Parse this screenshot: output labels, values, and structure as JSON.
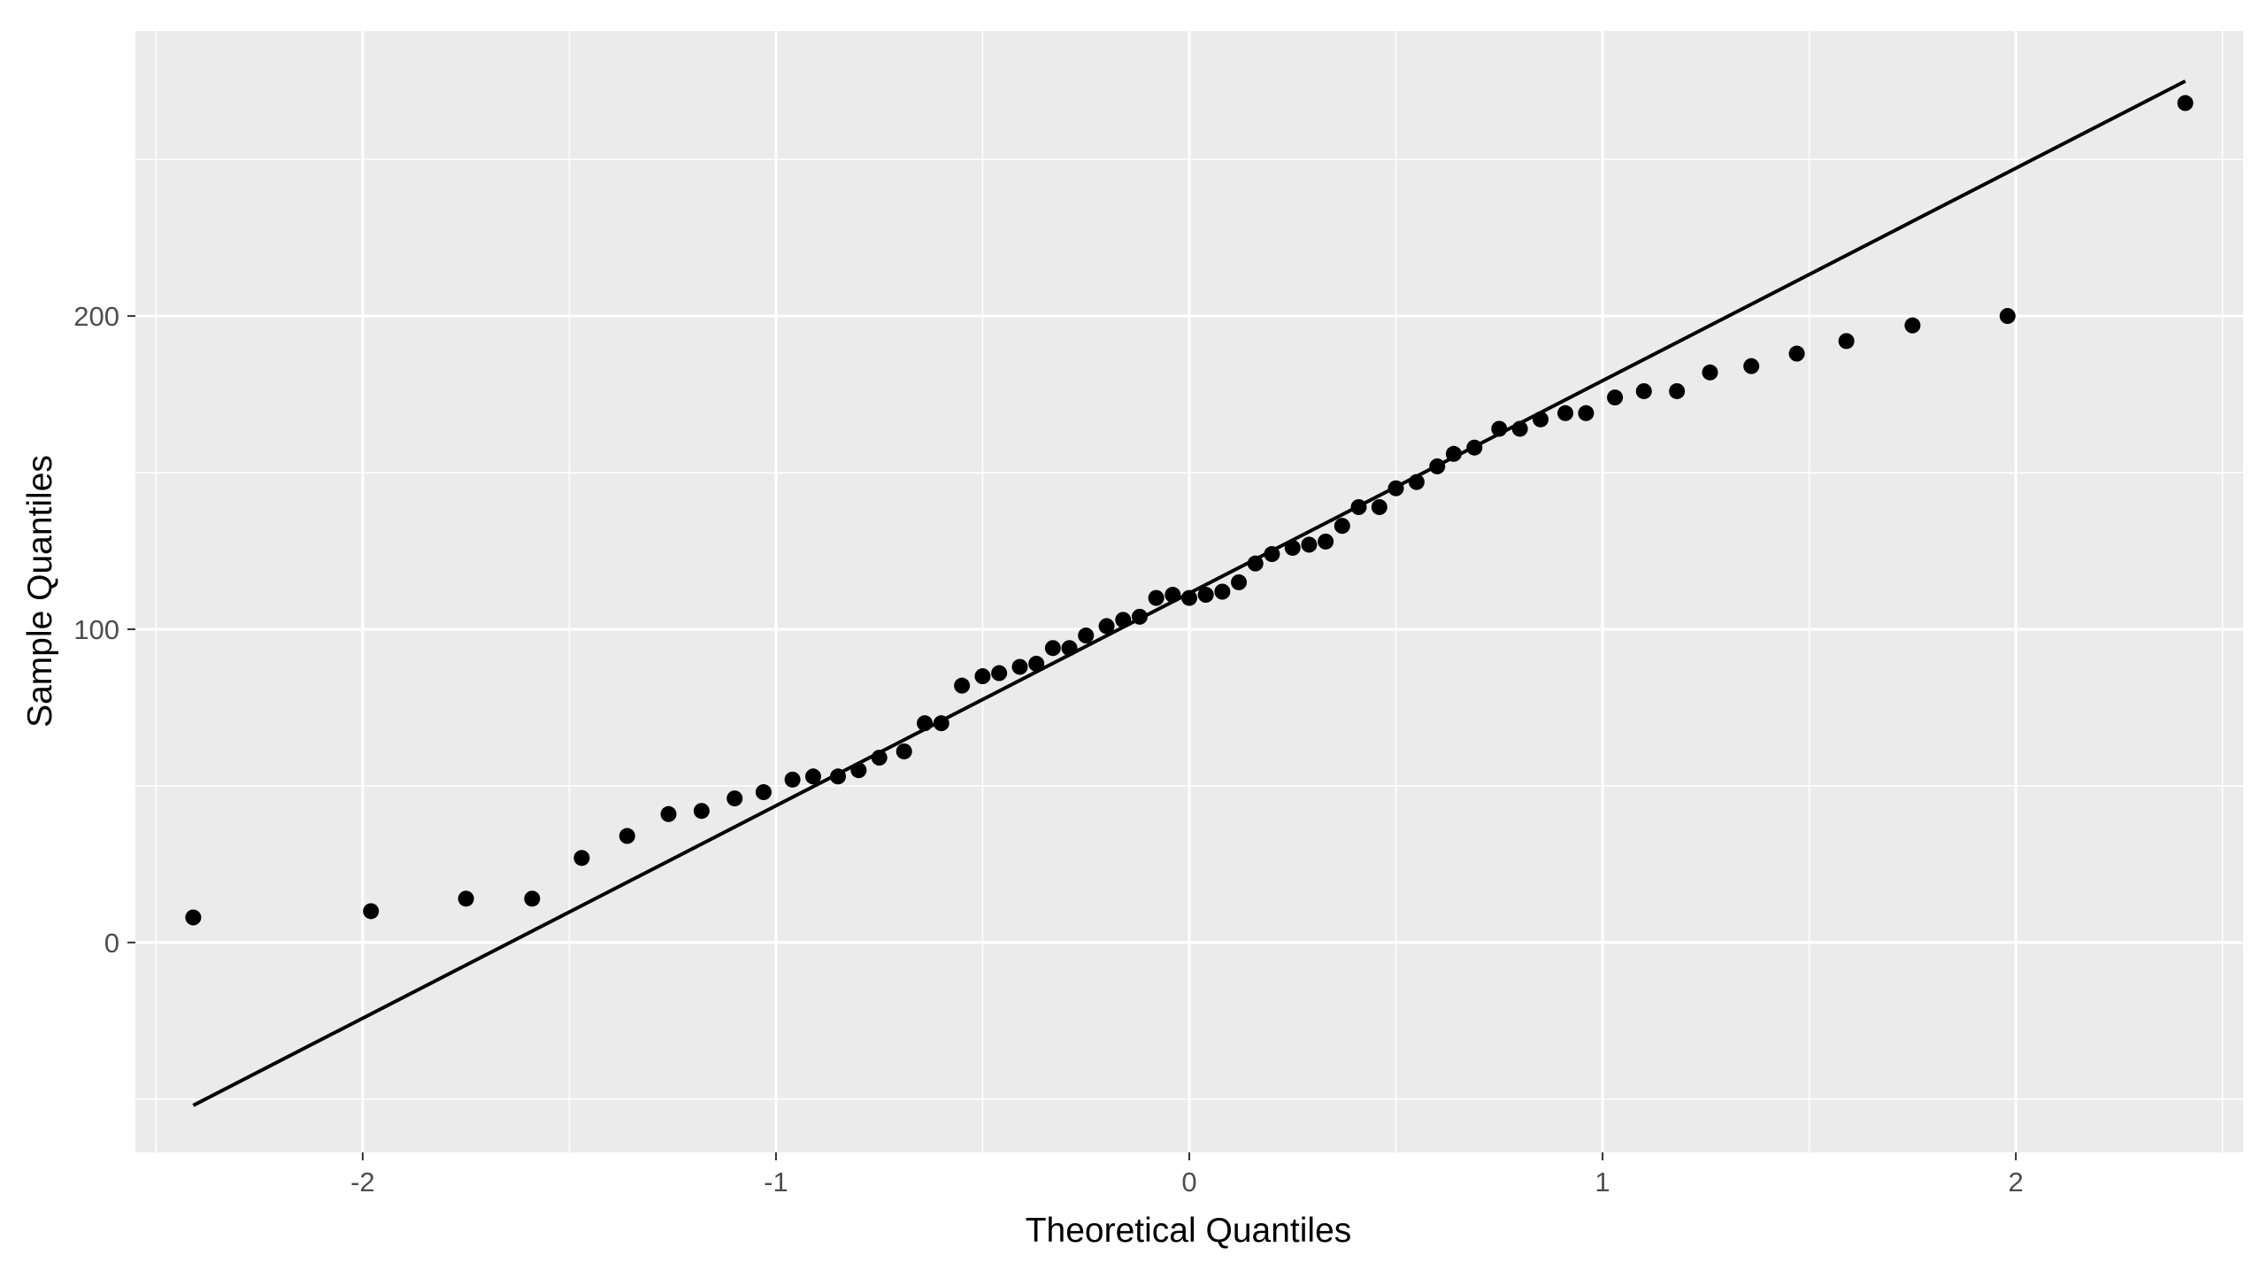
{
  "chart_data": {
    "type": "scatter",
    "title": "",
    "xlabel": "Theoretical Quantiles",
    "ylabel": "Sample Quantiles",
    "xlim": [
      -2.55,
      2.55
    ],
    "ylim": [
      -67,
      291
    ],
    "x_ticks": [
      -2,
      -1,
      0,
      1,
      2
    ],
    "x_tick_labels": [
      "-2",
      "-1",
      "0",
      "1",
      "2"
    ],
    "y_ticks": [
      0,
      100,
      200
    ],
    "y_tick_labels": [
      "0",
      "100",
      "200"
    ],
    "grid": true,
    "legend": "none",
    "colors": {
      "panel_background": "#ebebeb",
      "grid_line": "#ffffff",
      "point": "#000000",
      "reference_line": "#000000"
    },
    "series": [
      {
        "x": [
          -2.41,
          -1.98,
          -1.75,
          -1.59,
          -1.47,
          -1.36,
          -1.26,
          -1.18,
          -1.1,
          -1.03,
          -0.96,
          -0.91,
          -0.85,
          -0.8,
          -0.75,
          -0.69,
          -0.64,
          -0.6,
          -0.55,
          -0.5,
          -0.46,
          -0.41,
          -0.37,
          -0.33,
          -0.29,
          -0.25,
          -0.2,
          -0.16,
          -0.12,
          -0.08,
          -0.04,
          0.0,
          0.04,
          0.08,
          0.12,
          0.16,
          0.2,
          0.25,
          0.29,
          0.33,
          0.37,
          0.41,
          0.46,
          0.5,
          0.55,
          0.6,
          0.64,
          0.69,
          0.75,
          0.8,
          0.85,
          0.91,
          0.96,
          1.03,
          1.1,
          1.18,
          1.26,
          1.36,
          1.47,
          1.59,
          1.75,
          1.98,
          2.41
        ],
        "y": [
          8,
          10,
          14,
          14,
          27,
          34,
          41,
          42,
          46,
          48,
          52,
          53,
          53,
          55,
          59,
          61,
          70,
          70,
          82,
          85,
          86,
          88,
          89,
          94,
          94,
          98,
          101,
          103,
          104,
          110,
          111,
          110,
          111,
          112,
          115,
          121,
          124,
          126,
          127,
          128,
          133,
          139,
          139,
          145,
          147,
          152,
          156,
          158,
          164,
          164,
          167,
          169,
          169,
          174,
          176,
          176,
          182,
          184,
          188,
          192,
          197,
          200,
          268
        ]
      }
    ],
    "reference_line": {
      "x": [
        -2.41,
        2.41
      ],
      "y": [
        -52,
        275
      ]
    }
  }
}
